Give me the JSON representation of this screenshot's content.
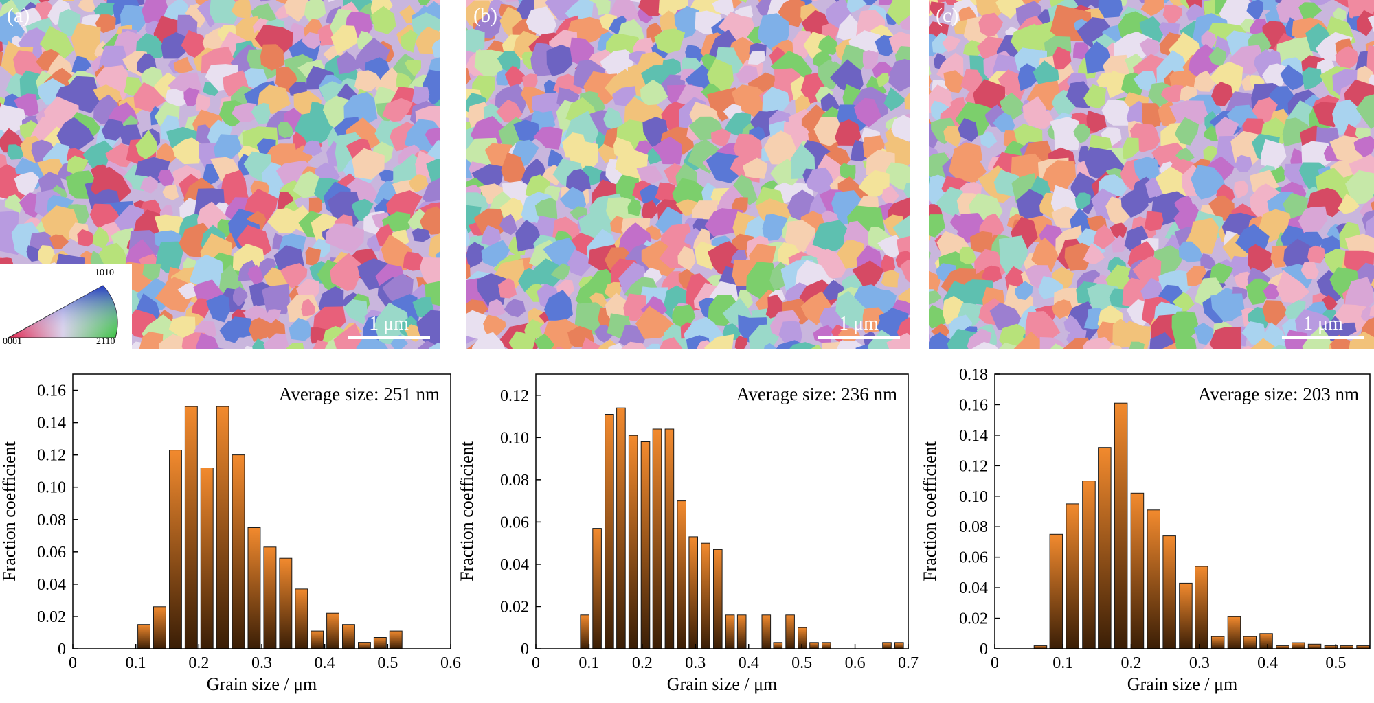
{
  "maps": [
    {
      "label": "(a)",
      "scalebar": "1 μm"
    },
    {
      "label": "(b)",
      "scalebar": "1 μm"
    },
    {
      "label": "(c)",
      "scalebar": "1 μm"
    }
  ],
  "ipf_key": {
    "top": "1010",
    "bottom_left": "0001",
    "bottom_right": "2110"
  },
  "colors": {
    "bar_top": "#f28a2e",
    "bar_bottom": "#3a1e06",
    "bar_stroke": "#1a1a1a"
  },
  "chart_data": [
    {
      "type": "bar",
      "annotation": "Average size: 251 nm",
      "xlabel": "Grain size / μm",
      "ylabel": "Fraction coefficient",
      "xlim": [
        0,
        0.6
      ],
      "ylim": [
        0,
        0.17
      ],
      "xticks": [
        0,
        0.1,
        0.2,
        0.3,
        0.4,
        0.5,
        0.6
      ],
      "xtick_labels": [
        "0",
        "0.1",
        "0.2",
        "0.3",
        "0.4",
        "0.5",
        "0.6"
      ],
      "yticks": [
        0,
        0.02,
        0.04,
        0.06,
        0.08,
        0.1,
        0.12,
        0.14,
        0.16
      ],
      "ytick_labels": [
        "0",
        "0.02",
        "0.04",
        "0.06",
        "0.08",
        "0.10",
        "0.12",
        "0.14",
        "0.16"
      ],
      "bin_width": 0.025,
      "x": [
        0.113,
        0.138,
        0.163,
        0.188,
        0.213,
        0.238,
        0.263,
        0.288,
        0.313,
        0.338,
        0.363,
        0.388,
        0.413,
        0.438,
        0.463,
        0.488,
        0.513
      ],
      "values": [
        0.015,
        0.026,
        0.123,
        0.15,
        0.112,
        0.15,
        0.12,
        0.075,
        0.063,
        0.056,
        0.037,
        0.011,
        0.022,
        0.015,
        0.004,
        0.007,
        0.011
      ]
    },
    {
      "type": "bar",
      "annotation": "Average size: 236 nm",
      "xlabel": "Grain size / μm",
      "ylabel": "Fraction coefficient",
      "xlim": [
        0,
        0.7
      ],
      "ylim": [
        0,
        0.13
      ],
      "xticks": [
        0,
        0.1,
        0.2,
        0.3,
        0.4,
        0.5,
        0.6,
        0.7
      ],
      "xtick_labels": [
        "0",
        "0.1",
        "0.2",
        "0.3",
        "0.4",
        "0.5",
        "0.6",
        "0.7"
      ],
      "yticks": [
        0,
        0.02,
        0.04,
        0.06,
        0.08,
        0.1,
        0.12
      ],
      "ytick_labels": [
        "0",
        "0.02",
        "0.04",
        "0.06",
        "0.08",
        "0.10",
        "0.12"
      ],
      "bin_width": 0.0227,
      "x": [
        0.092,
        0.115,
        0.138,
        0.16,
        0.183,
        0.206,
        0.228,
        0.251,
        0.274,
        0.296,
        0.319,
        0.342,
        0.365,
        0.387,
        0.41,
        0.433,
        0.455,
        0.478,
        0.501,
        0.523,
        0.546,
        0.569,
        0.66,
        0.683
      ],
      "values": [
        0.016,
        0.057,
        0.111,
        0.114,
        0.101,
        0.098,
        0.104,
        0.104,
        0.07,
        0.053,
        0.05,
        0.047,
        0.016,
        0.016,
        0.0,
        0.016,
        0.003,
        0.016,
        0.01,
        0.003,
        0.003,
        0.0,
        0.003,
        0.003
      ]
    },
    {
      "type": "bar",
      "annotation": "Average size: 203 nm",
      "xlabel": "Grain size / μm",
      "ylabel": "Fraction coefficient",
      "xlim": [
        0,
        0.55
      ],
      "ylim": [
        0,
        0.18
      ],
      "xticks": [
        0,
        0.1,
        0.2,
        0.3,
        0.4,
        0.5
      ],
      "xtick_labels": [
        "0",
        "0.1",
        "0.2",
        "0.3",
        "0.4",
        "0.5"
      ],
      "yticks": [
        0,
        0.02,
        0.04,
        0.06,
        0.08,
        0.1,
        0.12,
        0.14,
        0.16,
        0.18
      ],
      "ytick_labels": [
        "0",
        "0.02",
        "0.04",
        "0.06",
        "0.08",
        "0.10",
        "0.12",
        "0.14",
        "0.16",
        "0.18"
      ],
      "bin_width": 0.0237,
      "x": [
        0.067,
        0.09,
        0.114,
        0.138,
        0.161,
        0.185,
        0.209,
        0.233,
        0.256,
        0.28,
        0.303,
        0.327,
        0.351,
        0.374,
        0.398,
        0.422,
        0.445,
        0.469,
        0.493,
        0.516,
        0.54
      ],
      "values": [
        0.002,
        0.075,
        0.095,
        0.11,
        0.132,
        0.161,
        0.102,
        0.091,
        0.074,
        0.043,
        0.054,
        0.008,
        0.021,
        0.008,
        0.01,
        0.002,
        0.004,
        0.003,
        0.002,
        0.002,
        0.002
      ]
    }
  ]
}
